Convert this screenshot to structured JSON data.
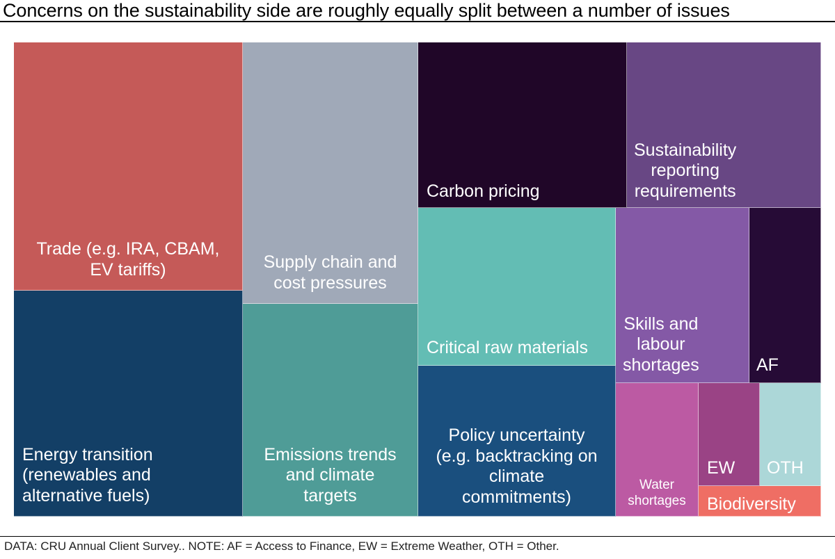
{
  "title": "Concerns on the sustainability side are roughly equally split between a number of issues",
  "footnote": "DATA: CRU Annual Client Survey.. NOTE: AF = Access to Finance, EW = Extreme Weather, OTH = Other.",
  "chart_data": {
    "type": "treemap",
    "title": "Concerns on the sustainability side are roughly equally split between a number of issues",
    "value_note": "Relative share of responses estimated from tile areas (no numeric labels shown)",
    "items": [
      {
        "id": "trade",
        "label": "Trade (e.g. IRA, CBAM,\nEV tariffs)",
        "value": 14.8,
        "color": "#c55a58"
      },
      {
        "id": "energy-transition",
        "label": "Energy transition\n(renewables and\nalternative fuels)",
        "value": 13.5,
        "color": "#133f66"
      },
      {
        "id": "supply-chain",
        "label": "Supply chain and\ncost pressures",
        "value": 12.0,
        "color": "#a0a9b8"
      },
      {
        "id": "emissions-trends",
        "label": "Emissions trends\nand climate\ntargets",
        "value": 9.7,
        "color": "#4f9c97"
      },
      {
        "id": "carbon-pricing",
        "label": "Carbon pricing",
        "value": 9.0,
        "color": "#200628"
      },
      {
        "id": "sustainability-reporting",
        "label": "Sustainability\nreporting\nrequirements",
        "value": 8.4,
        "color": "#684784"
      },
      {
        "id": "critical-raw-materials",
        "label": "Critical raw materials",
        "value": 8.2,
        "color": "#63bdb4"
      },
      {
        "id": "policy-uncertainty",
        "label": "Policy uncertainty\n(e.g. backtracking on\nclimate\ncommitments)",
        "value": 7.8,
        "color": "#1a4f7e"
      },
      {
        "id": "skills-labour",
        "label": "Skills and\nlabour\nshortages",
        "value": 6.1,
        "color": "#8459a6"
      },
      {
        "id": "af",
        "label": "AF",
        "value": 3.3,
        "color": "#260b36"
      },
      {
        "id": "water-shortages",
        "label": "Water\nshortages",
        "value": 2.9,
        "color": "#bc5aa3"
      },
      {
        "id": "ew",
        "label": "EW",
        "value": 1.6,
        "color": "#9a4385"
      },
      {
        "id": "oth",
        "label": "OTH",
        "value": 1.6,
        "color": "#acd7d8"
      },
      {
        "id": "biodiversity",
        "label": "Biodiversity",
        "value": 1.0,
        "color": "#ef6e64"
      }
    ]
  }
}
